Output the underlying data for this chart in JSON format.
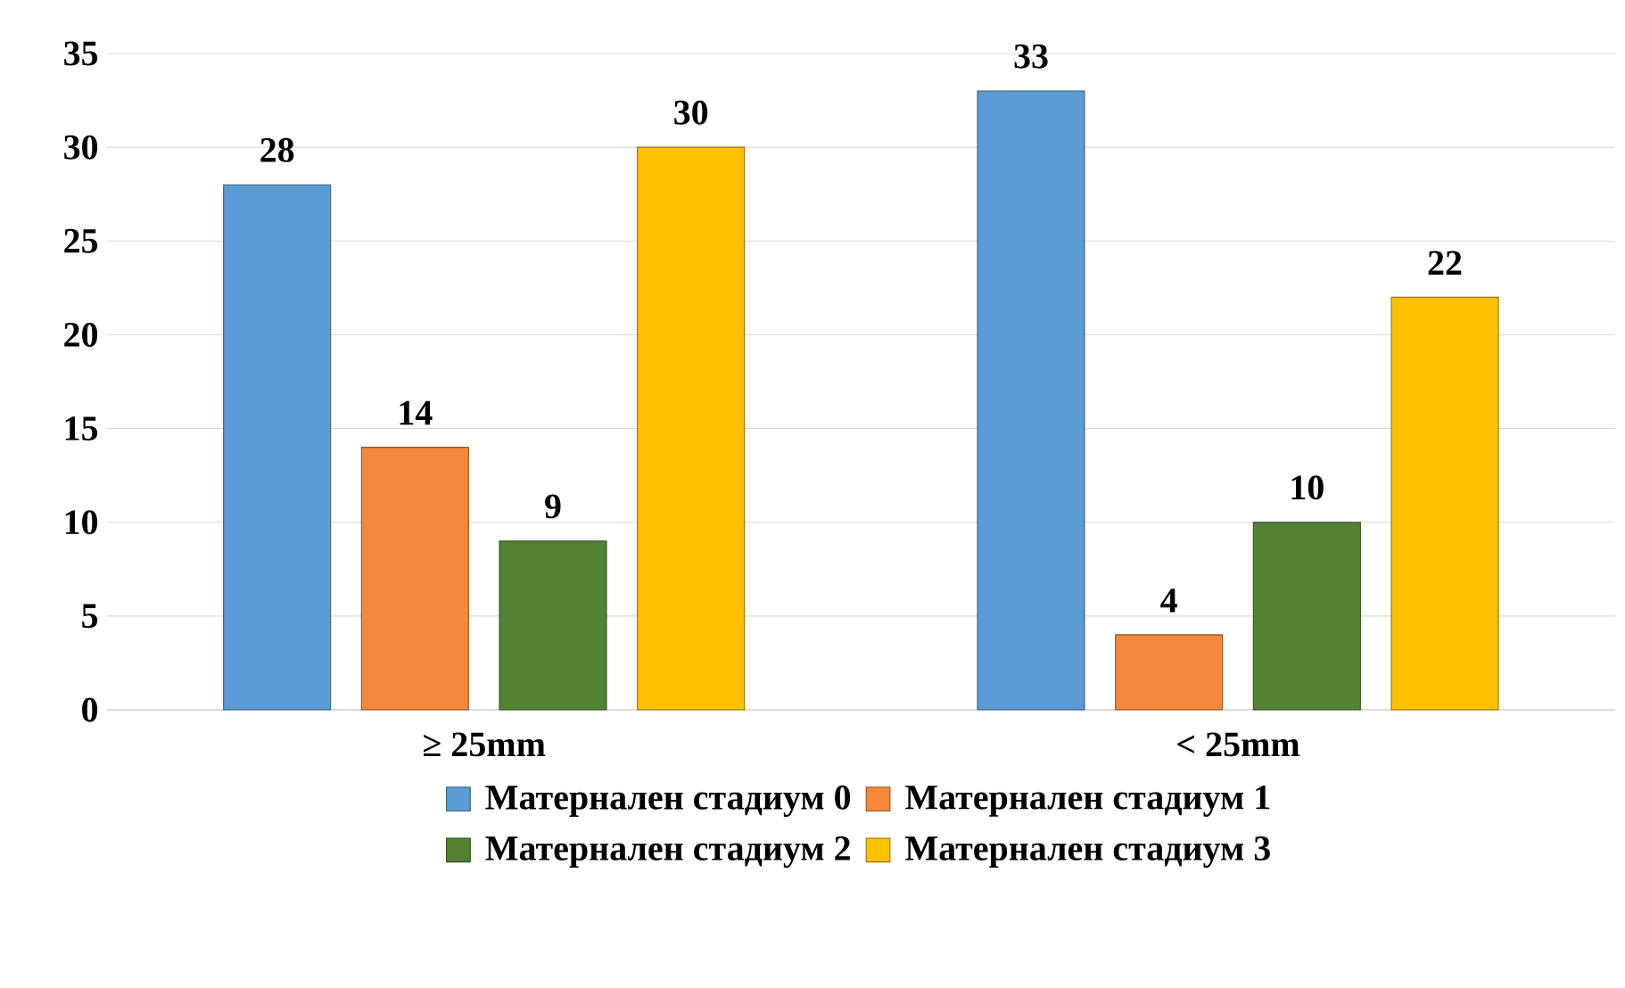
{
  "chart_data": {
    "type": "bar",
    "categories": [
      "≥ 25mm",
      "< 25mm"
    ],
    "series": [
      {
        "name": "Матернален стадиум 0",
        "color": "#5b9bd5",
        "values": [
          28,
          33
        ]
      },
      {
        "name": "Матернален стадиум 1",
        "color": "#f5883a",
        "values": [
          14,
          4
        ]
      },
      {
        "name": "Матернален стадиум 2",
        "color": "#548235",
        "values": [
          9,
          10
        ]
      },
      {
        "name": "Матернален стадиум 3",
        "color": "#ffc000",
        "values": [
          30,
          22
        ]
      }
    ],
    "ylim": [
      0,
      35
    ],
    "yticks": [
      0,
      5,
      10,
      15,
      20,
      25,
      30,
      35
    ],
    "grid": "y",
    "legend": "bottom",
    "data_labels": true
  }
}
